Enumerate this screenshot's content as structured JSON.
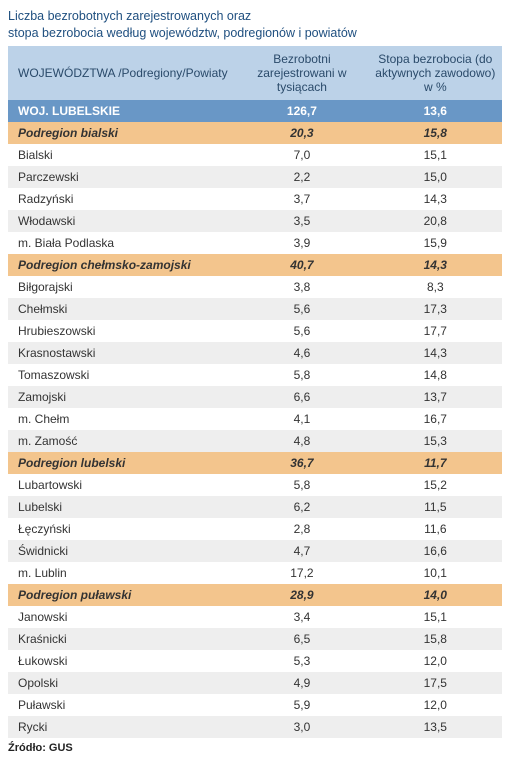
{
  "title_line1": "Liczba bezrobotnych zarejestrowanych oraz",
  "title_line2": "stopa bezrobocia według województw, podregionów  i  powiatów",
  "columns": [
    "WOJEWÓDZTWA /Podregiony/Powiaty",
    "Bezrobotni zarejestrowani w tysiącach",
    "Stopa bezrobocia (do aktywnych zawodowo) w %"
  ],
  "rows": [
    {
      "type": "woj",
      "cells": [
        "WOJ. LUBELSKIE",
        "126,7",
        "13,6"
      ]
    },
    {
      "type": "podregion",
      "cells": [
        "Podregion bialski",
        "20,3",
        "15,8"
      ]
    },
    {
      "type": "powiat",
      "cells": [
        "Bialski",
        "7,0",
        "15,1"
      ]
    },
    {
      "type": "powiat",
      "cells": [
        "Parczewski",
        "2,2",
        "15,0"
      ]
    },
    {
      "type": "powiat",
      "cells": [
        "Radzyński",
        "3,7",
        "14,3"
      ]
    },
    {
      "type": "powiat",
      "cells": [
        "Włodawski",
        "3,5",
        "20,8"
      ]
    },
    {
      "type": "powiat",
      "cells": [
        "m. Biała Podlaska",
        "3,9",
        "15,9"
      ]
    },
    {
      "type": "podregion",
      "cells": [
        "Podregion chełmsko-zamojski",
        "40,7",
        "14,3"
      ]
    },
    {
      "type": "powiat",
      "cells": [
        "Biłgorajski",
        "3,8",
        "8,3"
      ]
    },
    {
      "type": "powiat",
      "cells": [
        "Chełmski",
        "5,6",
        "17,3"
      ]
    },
    {
      "type": "powiat",
      "cells": [
        "Hrubieszowski",
        "5,6",
        "17,7"
      ]
    },
    {
      "type": "powiat",
      "cells": [
        "Krasnostawski",
        "4,6",
        "14,3"
      ]
    },
    {
      "type": "powiat",
      "cells": [
        "Tomaszowski",
        "5,8",
        "14,8"
      ]
    },
    {
      "type": "powiat",
      "cells": [
        "Zamojski",
        "6,6",
        "13,7"
      ]
    },
    {
      "type": "powiat",
      "cells": [
        "m. Chełm",
        "4,1",
        "16,7"
      ]
    },
    {
      "type": "powiat",
      "cells": [
        "m. Zamość",
        "4,8",
        "15,3"
      ]
    },
    {
      "type": "podregion",
      "cells": [
        "Podregion lubelski",
        "36,7",
        "11,7"
      ]
    },
    {
      "type": "powiat",
      "cells": [
        "Lubartowski",
        "5,8",
        "15,2"
      ]
    },
    {
      "type": "powiat",
      "cells": [
        "Lubelski",
        "6,2",
        "11,5"
      ]
    },
    {
      "type": "powiat",
      "cells": [
        "Łęczyński",
        "2,8",
        "11,6"
      ]
    },
    {
      "type": "powiat",
      "cells": [
        "Świdnicki",
        "4,7",
        "16,6"
      ]
    },
    {
      "type": "powiat",
      "cells": [
        "m. Lublin",
        "17,2",
        "10,1"
      ]
    },
    {
      "type": "podregion",
      "cells": [
        "Podregion puławski",
        "28,9",
        "14,0"
      ]
    },
    {
      "type": "powiat",
      "cells": [
        "Janowski",
        "3,4",
        "15,1"
      ]
    },
    {
      "type": "powiat",
      "cells": [
        "Kraśnicki",
        "6,5",
        "15,8"
      ]
    },
    {
      "type": "powiat",
      "cells": [
        "Łukowski",
        "5,3",
        "12,0"
      ]
    },
    {
      "type": "powiat",
      "cells": [
        "Opolski",
        "4,9",
        "17,5"
      ]
    },
    {
      "type": "powiat",
      "cells": [
        "Puławski",
        "5,9",
        "12,0"
      ]
    },
    {
      "type": "powiat",
      "cells": [
        "Rycki",
        "3,0",
        "13,5"
      ]
    }
  ],
  "source": "Źródło: GUS",
  "colors": {
    "header_bg": "#bcd2e8",
    "woj_bg": "#6997c6",
    "podregion_bg": "#f3c58d",
    "row_even": "#ffffff",
    "row_odd": "#eeeeee",
    "title_color": "#205080"
  }
}
